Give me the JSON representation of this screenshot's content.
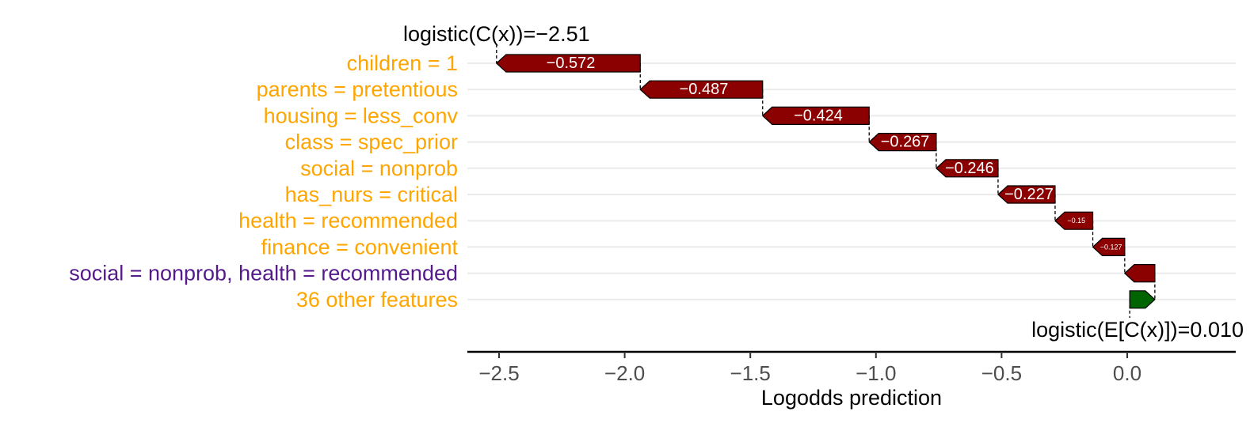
{
  "chart_data": {
    "type": "waterfall",
    "xlabel": "Logodds prediction",
    "xlim": [
      -2.62,
      0.4
    ],
    "xticks": [
      -2.5,
      -2.0,
      -1.5,
      -1.0,
      -0.5,
      0.0
    ],
    "xtick_labels": [
      "−2.5",
      "−2.0",
      "−1.5",
      "−1.0",
      "−0.5",
      "0.0"
    ],
    "prediction_annotation": "logistic(C(x))=−2.51",
    "baseline_annotation": "logistic(E[C(x)])=0.010",
    "baseline_value": 0.01,
    "prediction_value": -2.51,
    "features": [
      {
        "label": "children = 1",
        "value": -0.572,
        "value_label": "−0.572",
        "group": "single"
      },
      {
        "label": "parents = pretentious",
        "value": -0.487,
        "value_label": "−0.487",
        "group": "single"
      },
      {
        "label": "housing = less_conv",
        "value": -0.424,
        "value_label": "−0.424",
        "group": "single"
      },
      {
        "label": "class = spec_prior",
        "value": -0.267,
        "value_label": "−0.267",
        "group": "single"
      },
      {
        "label": "social = nonprob",
        "value": -0.246,
        "value_label": "−0.246",
        "group": "single"
      },
      {
        "label": "has_nurs = critical",
        "value": -0.227,
        "value_label": "−0.227",
        "group": "single"
      },
      {
        "label": "health = recommended",
        "value": -0.15,
        "value_label": "−0.15",
        "group": "single"
      },
      {
        "label": "finance = convenient",
        "value": -0.127,
        "value_label": "−0.127",
        "group": "single"
      },
      {
        "label": "social = nonprob, health = recommended",
        "value": -0.12,
        "value_label": "",
        "group": "interaction"
      },
      {
        "label": "36 other features",
        "value": 0.1,
        "value_label": "",
        "group": "single"
      }
    ],
    "colors": {
      "negative": "#8b0000",
      "positive": "#006400",
      "label_single": "#ffa500",
      "label_interaction": "#551a8b"
    }
  }
}
